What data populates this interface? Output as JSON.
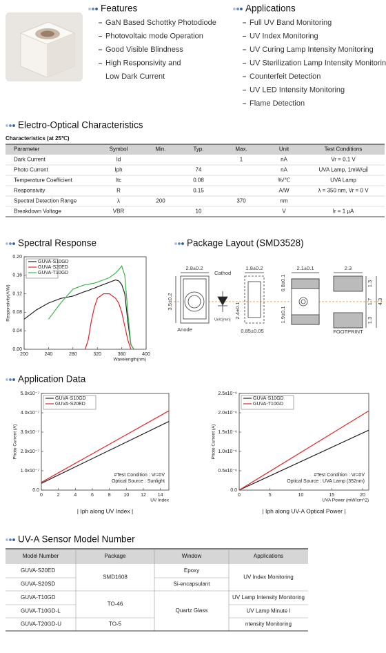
{
  "features": {
    "title": "Features",
    "items": [
      "GaN Based Schottky Photodiode",
      "Photovoltaic mode Operation",
      "Good Visible Blindness",
      [
        "High Responsivity and",
        "Low Dark Current"
      ]
    ]
  },
  "applications": {
    "title": "Applications",
    "items": [
      "Full UV Band Monitoring",
      "UV Index Monitoring",
      "UV Curing Lamp Intensity Monitoring",
      "UV Sterilization Lamp Intensity Monitoring",
      "Counterfeit Detection",
      "UV LED Intensity Monitoring",
      "Flame Detection"
    ]
  },
  "electro_optical": {
    "title": "Electro-Optical Characteristics",
    "subtitle": "Characteristics (at 25℃)",
    "columns": [
      "Parameter",
      "Symbol",
      "Min.",
      "Typ.",
      "Max.",
      "Unit",
      "Test Conditions"
    ],
    "rows": [
      {
        "parameter": "Dark Current",
        "symbol": "Id",
        "max": 1,
        "unit": "nA",
        "condition": "Vr = 0.1 V"
      },
      {
        "parameter": "Photo Current",
        "symbol": "Iph",
        "typ": 74,
        "unit": "nA",
        "condition": "UVA Lamp, 1mW/㎠"
      },
      {
        "parameter": "Temperature Coefficient",
        "symbol": "Itc",
        "typ": 0.08,
        "unit": "%/℃",
        "condition": "UVA Lamp"
      },
      {
        "parameter": "Responsivity",
        "symbol": "R",
        "typ": 0.15,
        "unit": "A/W",
        "condition": "λ = 350 nm, Vr = 0 V"
      },
      {
        "parameter": "Spectral Detection Range",
        "symbol": "λ",
        "min": 200,
        "max": 370,
        "unit": "nm"
      },
      {
        "parameter": "Breakdown Voltage",
        "symbol": "VBR",
        "typ": 10,
        "unit": "V",
        "condition": "Ir = 1 μA"
      }
    ]
  },
  "spectral_response": {
    "title": "Spectral Response"
  },
  "package_layout": {
    "title": "Package Layout (SMD3528)",
    "labels": [
      "2.8±0.2",
      "Cathod",
      "1.8±0.2",
      "2.1±0.1",
      "2.3",
      "3.5±0.2",
      "2.4±0.1",
      "0.8±0.1",
      "1.9±0.1",
      "1.3",
      "1.7",
      "1.3",
      "4.3",
      "Unit:[mm]",
      "Anode",
      "0.85±0.05",
      "FOOTPRINT"
    ]
  },
  "application_data": {
    "title": "Application Data"
  },
  "model_number": {
    "title": "UV-A Sensor Model Number",
    "columns": [
      "Model Number",
      "Package",
      "Window",
      "Applications"
    ],
    "models": [
      "GUVA-S20ED",
      "GUVA-S20SD",
      "GUVA-T10GD",
      "GUVA-T10GD-L",
      "GUVA-T20GD-U"
    ],
    "packages": [
      "SMD1608",
      "TO-46",
      "TO-5"
    ],
    "windows": [
      "Epoxy",
      "Si-encapsulant",
      "Quartz Glass"
    ],
    "applications": [
      "UV Index Monitoring",
      "UV Lamp Intensity Monitoring",
      "UV Lamp Minute I",
      "ntensity Monitoring"
    ]
  },
  "chart_data": [
    {
      "type": "line",
      "x_label": "Wavelength(nm)",
      "y_label": "Responsivity(A/W)",
      "x": [
        200,
        220,
        240,
        260,
        280,
        300,
        305,
        310,
        315,
        320,
        330,
        340,
        350,
        355,
        360,
        365,
        370,
        375,
        380
      ],
      "xlim": [
        200,
        400
      ],
      "xticks": [
        200,
        240,
        280,
        320,
        360,
        400
      ],
      "ylim": [
        0,
        0.2
      ],
      "yticks": [
        {
          "value": 0,
          "label": "0.00"
        },
        0.04,
        0.08,
        0.12,
        0.16,
        {
          "value": 0.2,
          "label": "0.20"
        }
      ],
      "legend": "upper left",
      "series": [
        {
          "name": "GUVA-S10GD",
          "color": "#222222",
          "values": [
            0.065,
            0.085,
            0.1,
            0.11,
            0.115,
            0.125,
            0.127,
            0.13,
            0.132,
            0.135,
            0.14,
            0.145,
            0.15,
            0.148,
            0.14,
            0.12,
            0.06,
            0.01,
            0
          ]
        },
        {
          "name": "GUVA-S20ED",
          "color": "#e0262b",
          "values": [
            null,
            null,
            null,
            null,
            null,
            0,
            0.02,
            0.06,
            0.09,
            0.11,
            0.12,
            0.12,
            0.11,
            0.1,
            0.08,
            0.05,
            0.02,
            0,
            null
          ]
        },
        {
          "name": "GUVA-T10GD",
          "color": "#3cb44b",
          "values": [
            null,
            null,
            0.065,
            0.1,
            0.13,
            0.14,
            0.14,
            0.142,
            0.143,
            0.145,
            0.15,
            0.155,
            0.165,
            0.172,
            0.18,
            0.16,
            0.08,
            0.01,
            0
          ]
        }
      ]
    },
    {
      "type": "line",
      "x_label": "UV Index",
      "y_label": "Photo Current (A)",
      "caption": "| Iph along UV Index |",
      "annotations": [
        "#Test Condition : Vr=0V",
        "Optical Source : Sunlight"
      ],
      "x": [
        0,
        15
      ],
      "xlim": [
        0,
        15
      ],
      "xticks": [
        0,
        2,
        4,
        6,
        8,
        10,
        12,
        14
      ],
      "ylim": [
        0,
        5e-07
      ],
      "yticks": [
        {
          "value": 0,
          "label": "0.0"
        },
        {
          "value": 1e-07,
          "label": "1.0x10⁻⁷"
        },
        {
          "value": 2e-07,
          "label": "2.0x10⁻⁷"
        },
        {
          "value": 3e-07,
          "label": "3.0x10⁻⁷"
        },
        {
          "value": 4e-07,
          "label": "4.0x10⁻⁷"
        },
        {
          "value": 5e-07,
          "label": "5.0x10⁻⁷"
        }
      ],
      "legend": "upper left",
      "series": [
        {
          "name": "GUVA-S10GD",
          "color": "#222222",
          "values": [
            3.5e-08,
            3.55e-07
          ]
        },
        {
          "name": "GUVA-S20ED",
          "color": "#e0262b",
          "values": [
            4e-08,
            4.1e-07
          ]
        }
      ]
    },
    {
      "type": "line",
      "x_label": "UVA Power (mW/cm^2)",
      "y_label": "Photo Current (A)",
      "caption": "| Iph along UV-A Optical Power |",
      "annotations": [
        "#Test Condition : Vr=0V",
        "Optical Source : UVA Lamp (352nm)"
      ],
      "x": [
        0,
        21
      ],
      "xlim": [
        0,
        21
      ],
      "xticks": [
        0,
        5,
        10,
        15,
        20
      ],
      "ylim": [
        0,
        2.5e-06
      ],
      "yticks": [
        {
          "value": 0,
          "label": "0.0"
        },
        {
          "value": 5e-07,
          "label": "0.5x10⁻⁶"
        },
        {
          "value": 1e-06,
          "label": "1.0x10⁻⁶"
        },
        {
          "value": 1.5e-06,
          "label": "1.5x10⁻⁶"
        },
        {
          "value": 2e-06,
          "label": "2.0x10⁻⁶"
        },
        {
          "value": 2.5e-06,
          "label": "2.5x10⁻⁶"
        }
      ],
      "legend": "upper left",
      "series": [
        {
          "name": "GUVA-S10GD",
          "color": "#222222",
          "values": [
            0,
            1.55e-06
          ]
        },
        {
          "name": "GUVA-T10GD",
          "color": "#e0262b",
          "values": [
            0,
            2.05e-06
          ]
        }
      ]
    }
  ]
}
